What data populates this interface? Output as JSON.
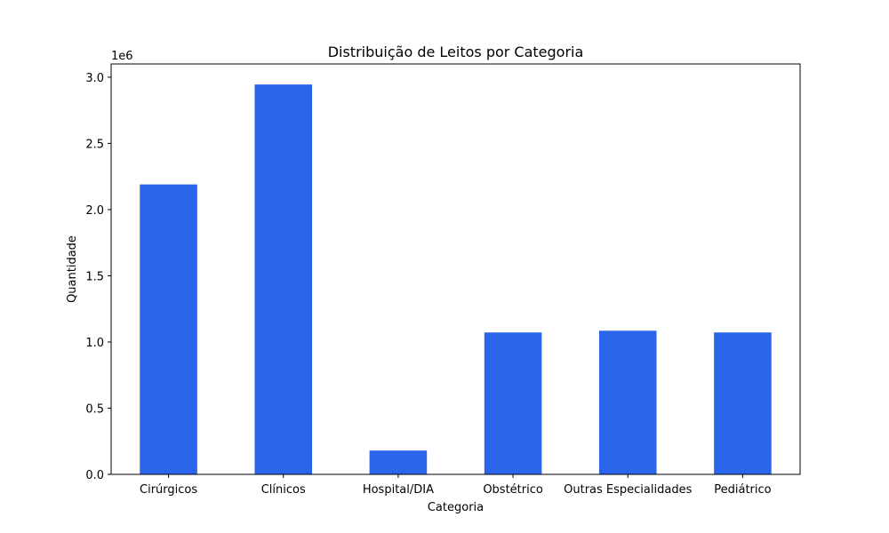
{
  "chart_data": {
    "type": "bar",
    "title": "Distribuição de Leitos por Categoria",
    "xlabel": "Categoria",
    "ylabel": "Quantidade",
    "y_offset_label": "1e6",
    "categories": [
      "Cirúrgicos",
      "Clínicos",
      "Hospital/DIA",
      "Obstétrico",
      "Outras Especialidades",
      "Pediátrico"
    ],
    "values": [
      2190000,
      2945000,
      180000,
      1072000,
      1085000,
      1072000
    ],
    "ylim": [
      0,
      3100000
    ],
    "yticks": [
      0,
      500000,
      1000000,
      1500000,
      2000000,
      2500000,
      3000000
    ],
    "ytick_labels": [
      "0.0",
      "0.5",
      "1.0",
      "1.5",
      "2.0",
      "2.5",
      "3.0"
    ],
    "grid": false,
    "bar_color": "#2b65ec"
  }
}
